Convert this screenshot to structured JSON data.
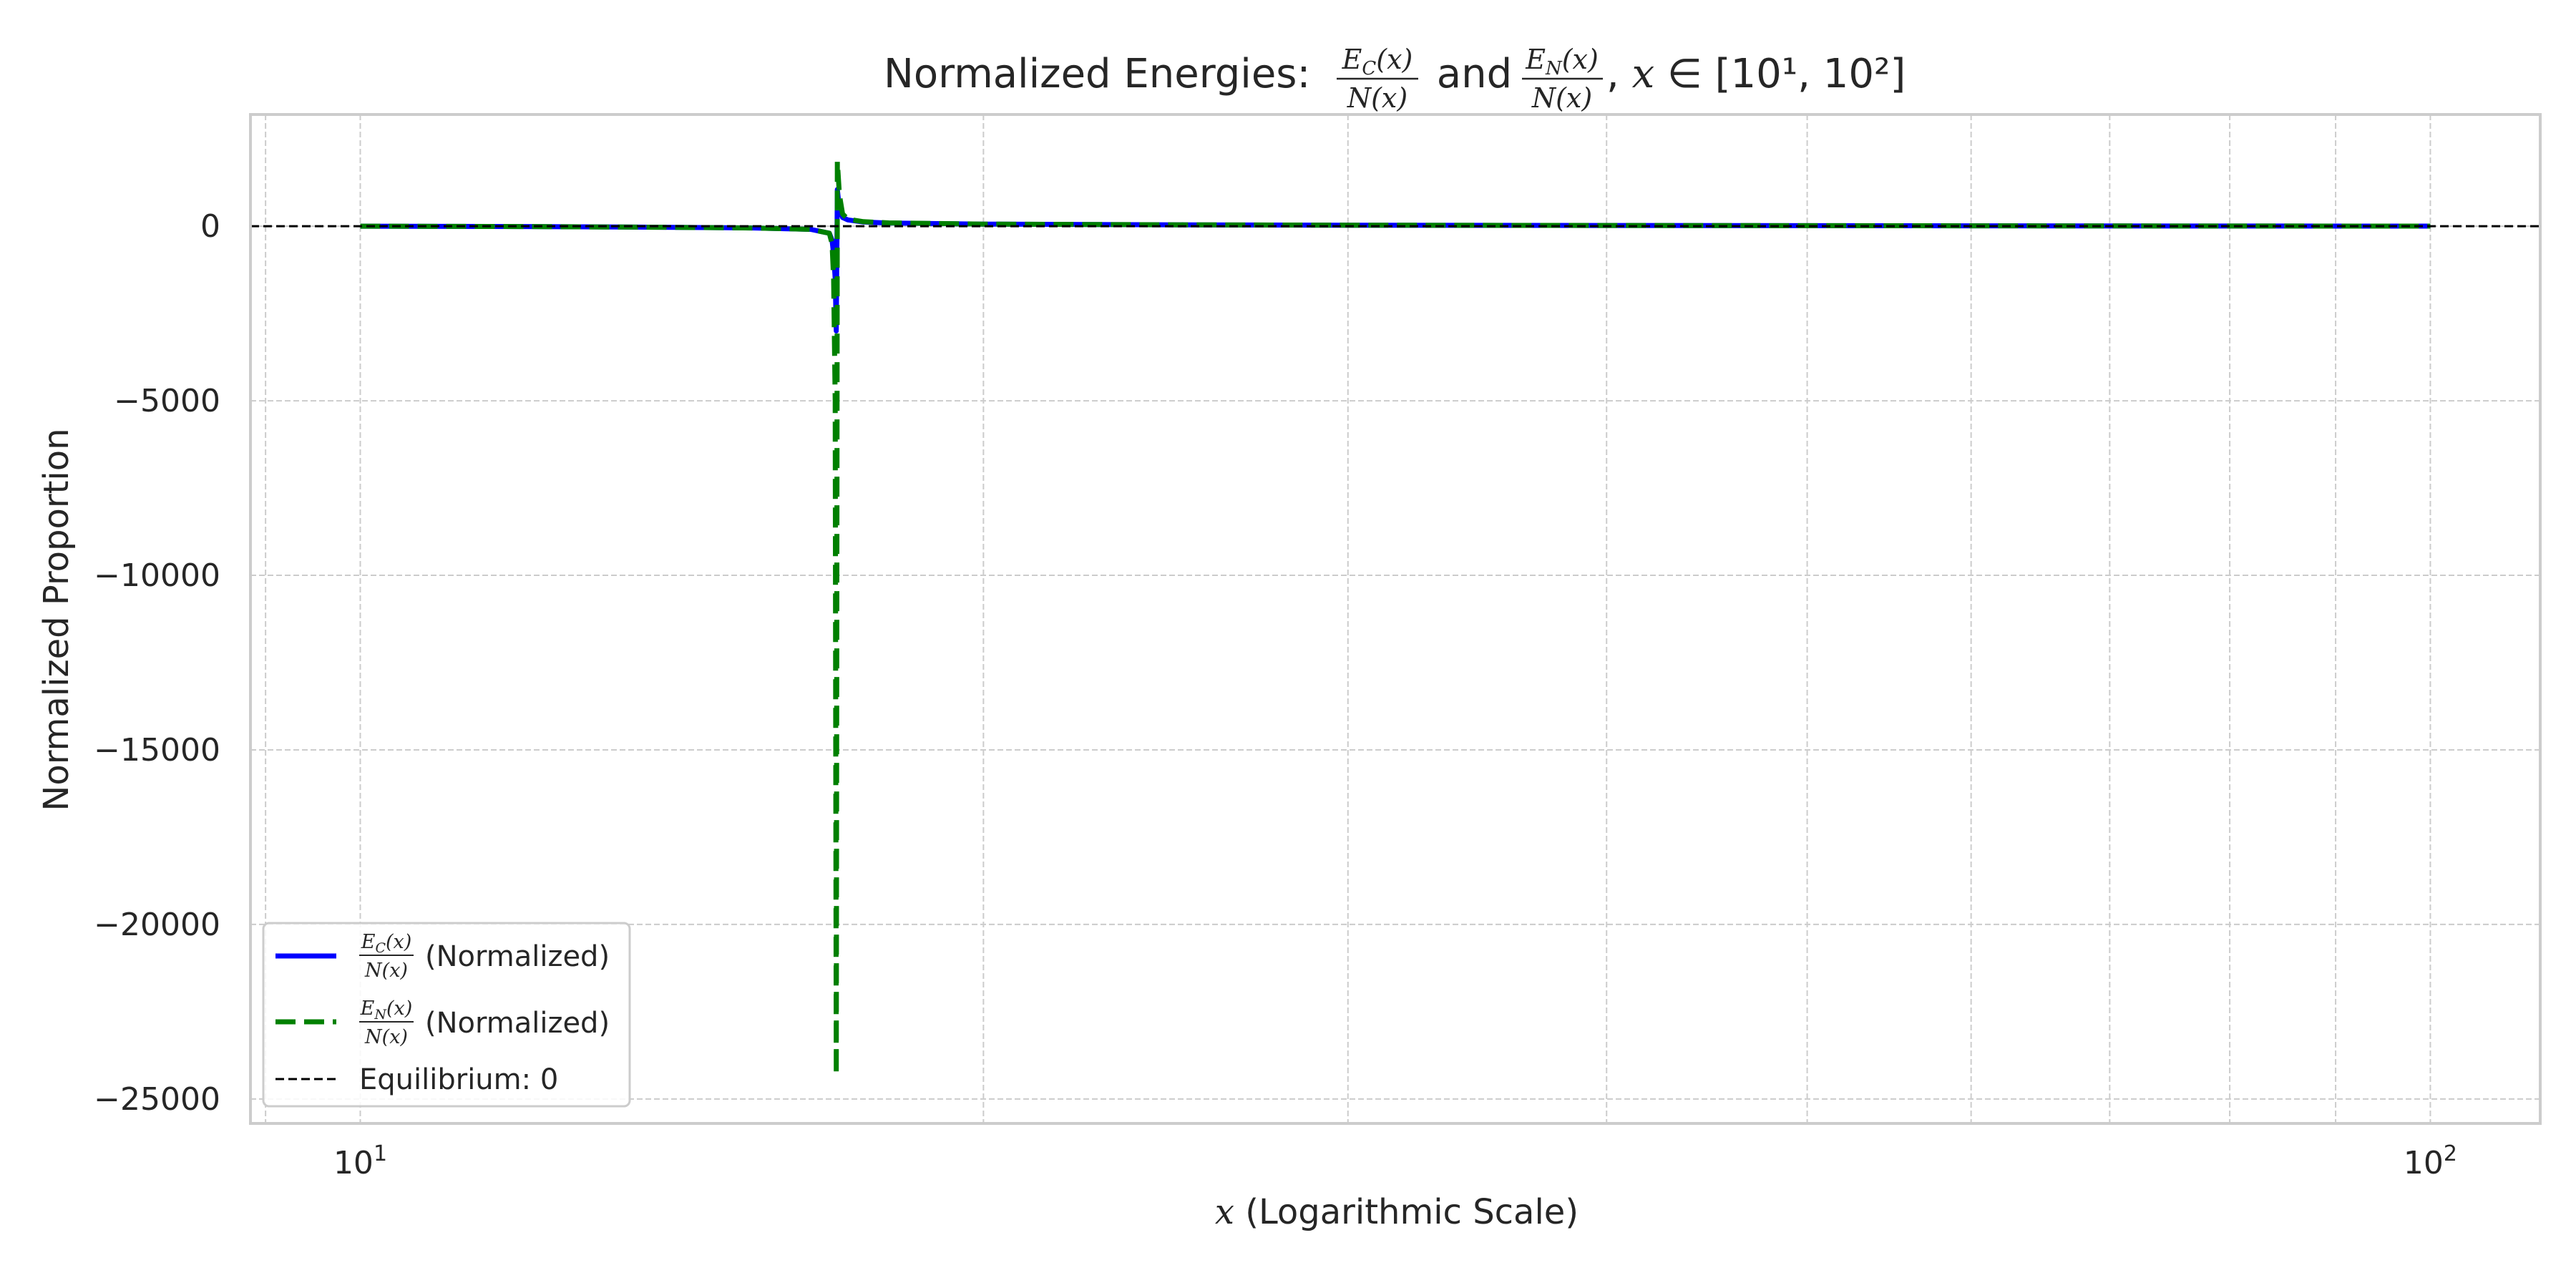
{
  "chart_data": {
    "type": "line",
    "title": {
      "prefix": "Normalized Energies: ",
      "frac1_num": "E",
      "frac1_num_sub": "C",
      "frac1_num_tail": "(x)",
      "frac1_den": "N(x)",
      "middle": " and ",
      "frac2_num": "E",
      "frac2_num_sub": "N",
      "frac2_num_tail": "(x)",
      "frac2_den": "N(x)",
      "tail_comma": ", ",
      "tail_x": "x",
      "tail_in": " ∈ ",
      "tail_range": "[10¹, 10²]"
    },
    "xlabel_var": "x",
    "xlabel_rest": " (Logarithmic Scale)",
    "ylabel": "Normalized Proportion",
    "xscale": "log",
    "xlim": [
      8.85,
      113
    ],
    "ylim": [
      -25700,
      3200
    ],
    "grid": true,
    "x_tick_labels": [
      {
        "x": 10,
        "base": "10",
        "exp": "1"
      },
      {
        "x": 100,
        "base": "10",
        "exp": "2"
      }
    ],
    "y_ticks": [
      0,
      -5000,
      -10000,
      -15000,
      -20000,
      -25000
    ],
    "y_tick_labels": [
      "0",
      "−5000",
      "−10000",
      "−15000",
      "−20000",
      "−25000"
    ],
    "series": [
      {
        "name": "(Normalized)",
        "name_num": "E",
        "name_num_sub": "C",
        "name_num_tail": "(x)",
        "name_den": "N(x)",
        "color": "#0000ff",
        "style": "solid",
        "x": [
          10,
          12,
          14,
          15.5,
          16.5,
          16.85,
          16.9,
          16.93,
          16.96,
          16.98,
          17.0,
          17.04,
          17.1,
          17.2,
          17.5,
          18,
          20,
          25,
          30,
          40,
          60,
          80,
          100
        ],
        "y": [
          0,
          -10,
          -30,
          -50,
          -90,
          -200,
          -400,
          -800,
          -1500,
          -3000,
          1050,
          500,
          250,
          180,
          120,
          90,
          60,
          40,
          30,
          20,
          10,
          5,
          3
        ]
      },
      {
        "name": "(Normalized)",
        "name_num": "E",
        "name_num_sub": "N",
        "name_num_tail": "(x)",
        "name_den": "N(x)",
        "color": "#008000",
        "style": "dashed",
        "x": [
          10,
          12,
          14,
          15.5,
          16.5,
          16.85,
          16.9,
          16.93,
          16.96,
          16.98,
          17.0,
          17.04,
          17.1,
          17.2,
          17.5,
          18,
          20,
          25,
          30,
          40,
          60,
          80,
          100
        ],
        "y": [
          0,
          -10,
          -30,
          -50,
          -90,
          -200,
          -500,
          -1500,
          -5000,
          -24300,
          1850,
          900,
          350,
          200,
          130,
          95,
          60,
          40,
          30,
          20,
          10,
          5,
          3
        ]
      }
    ],
    "reference_line": {
      "y": 0,
      "label": "Equilibrium: 0",
      "color": "#000000",
      "style": "dashed"
    },
    "legend_position": "lower-left"
  }
}
